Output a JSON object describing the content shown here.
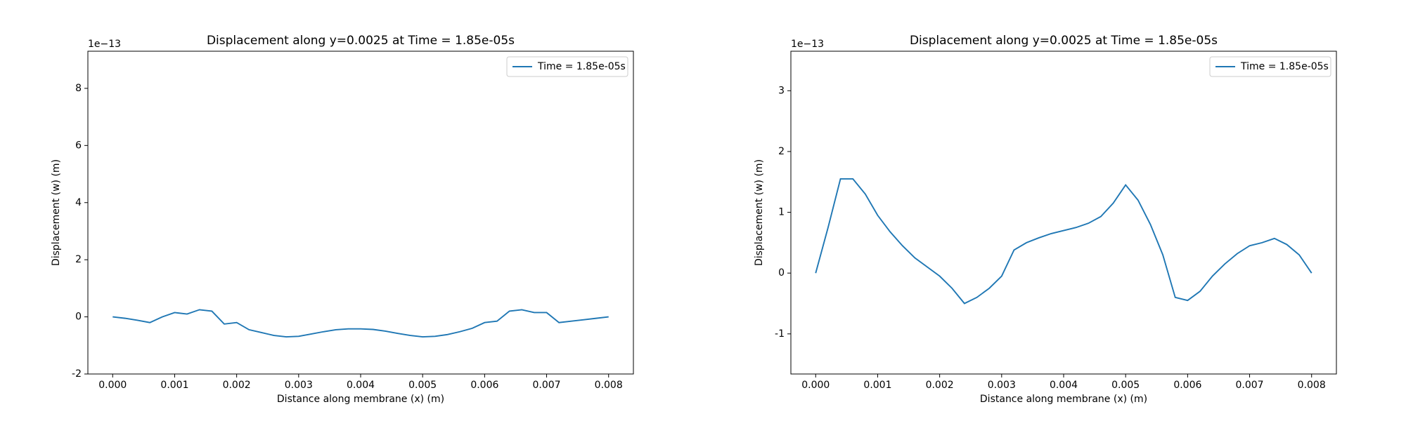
{
  "chart_data": [
    {
      "type": "line",
      "title": "Displacement along y=0.0025 at Time = 1.85e-05s",
      "x_label": "Distance along membrane (x) (m)",
      "y_label": "Displacement (w) (m)",
      "y_offset_label": "1e−13",
      "x": [
        0,
        0.0002,
        0.0004,
        0.0006,
        0.0008,
        0.001,
        0.0012,
        0.0014,
        0.0016,
        0.0018,
        0.002,
        0.0022,
        0.0024,
        0.0026,
        0.0028,
        0.003,
        0.0032,
        0.0034,
        0.0036,
        0.0038,
        0.004,
        0.0042,
        0.0044,
        0.0046,
        0.0048,
        0.005,
        0.0052,
        0.0054,
        0.0056,
        0.0058,
        0.006,
        0.0062,
        0.0064,
        0.0066,
        0.0068,
        0.007,
        0.0072,
        0.0074,
        0.0076,
        0.0078,
        0.008
      ],
      "series": [
        {
          "name": "Time = 1.85e-05s",
          "color": "#1f77b4",
          "values": [
            0,
            -0.05,
            -0.12,
            -0.2,
            0.0,
            0.15,
            0.1,
            0.25,
            0.2,
            -0.25,
            -0.2,
            -0.45,
            -0.55,
            -0.65,
            -0.7,
            -0.68,
            -0.6,
            -0.52,
            -0.45,
            -0.42,
            -0.42,
            -0.44,
            -0.5,
            -0.58,
            -0.65,
            -0.7,
            -0.68,
            -0.62,
            -0.52,
            -0.4,
            -0.2,
            -0.15,
            0.2,
            0.25,
            0.15,
            0.15,
            -0.2,
            -0.15,
            -0.1,
            -0.05,
            0
          ]
        }
      ],
      "xlim": [
        -0.0004,
        0.0084
      ],
      "ylim": [
        -2,
        9.3
      ],
      "xticks": [
        {
          "value": 0,
          "label": "0.000"
        },
        {
          "value": 0.001,
          "label": "0.001"
        },
        {
          "value": 0.002,
          "label": "0.002"
        },
        {
          "value": 0.003,
          "label": "0.003"
        },
        {
          "value": 0.004,
          "label": "0.004"
        },
        {
          "value": 0.005,
          "label": "0.005"
        },
        {
          "value": 0.006,
          "label": "0.006"
        },
        {
          "value": 0.007,
          "label": "0.007"
        },
        {
          "value": 0.008,
          "label": "0.008"
        }
      ],
      "yticks": [
        -2,
        0,
        2,
        4,
        6,
        8
      ],
      "grid": false,
      "legend": "upper right"
    },
    {
      "type": "line",
      "title": "Displacement along y=0.0025 at Time = 1.85e-05s",
      "x_label": "Distance along membrane (x) (m)",
      "y_label": "Displacement (w) (m)",
      "y_offset_label": "1e−13",
      "x": [
        0,
        0.0002,
        0.0004,
        0.0006,
        0.0008,
        0.001,
        0.0012,
        0.0014,
        0.0016,
        0.0018,
        0.002,
        0.0022,
        0.0024,
        0.0026,
        0.0028,
        0.003,
        0.0032,
        0.0034,
        0.0036,
        0.0038,
        0.004,
        0.0042,
        0.0044,
        0.0046,
        0.0048,
        0.005,
        0.0052,
        0.0054,
        0.0056,
        0.0058,
        0.006,
        0.0062,
        0.0064,
        0.0066,
        0.0068,
        0.007,
        0.0072,
        0.0074,
        0.0076,
        0.0078,
        0.008
      ],
      "series": [
        {
          "name": "Time = 1.85e-05s",
          "color": "#1f77b4",
          "values": [
            0,
            0.75,
            1.55,
            1.55,
            1.3,
            0.95,
            0.68,
            0.45,
            0.25,
            0.1,
            -0.05,
            -0.25,
            -0.5,
            -0.4,
            -0.25,
            -0.05,
            0.38,
            0.5,
            0.58,
            0.65,
            0.7,
            0.75,
            0.82,
            0.93,
            1.15,
            1.45,
            1.2,
            0.8,
            0.3,
            -0.4,
            -0.45,
            -0.3,
            -0.05,
            0.15,
            0.32,
            0.45,
            0.5,
            0.57,
            0.47,
            0.3,
            0
          ]
        }
      ],
      "xlim": [
        -0.0004,
        0.0084
      ],
      "ylim": [
        -1.66,
        3.65
      ],
      "xticks": [
        {
          "value": 0,
          "label": "0.000"
        },
        {
          "value": 0.001,
          "label": "0.001"
        },
        {
          "value": 0.002,
          "label": "0.002"
        },
        {
          "value": 0.003,
          "label": "0.003"
        },
        {
          "value": 0.004,
          "label": "0.004"
        },
        {
          "value": 0.005,
          "label": "0.005"
        },
        {
          "value": 0.006,
          "label": "0.006"
        },
        {
          "value": 0.007,
          "label": "0.007"
        },
        {
          "value": 0.008,
          "label": "0.008"
        }
      ],
      "yticks": [
        -1,
        0,
        1,
        2,
        3
      ],
      "grid": false,
      "legend": "upper right"
    }
  ]
}
